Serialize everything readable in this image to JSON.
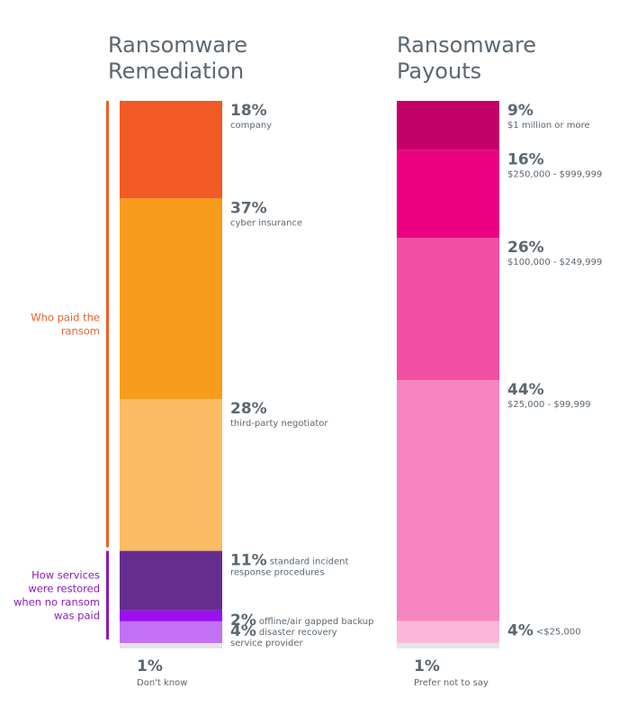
{
  "chart_data": [
    {
      "type": "bar",
      "title": "Ransomware Remediation",
      "title_lines": [
        "Ransomware",
        "Remediation"
      ],
      "stacked": true,
      "groups": [
        {
          "label_lines": [
            "Who paid the",
            "ransom"
          ],
          "color": "#e8602a"
        },
        {
          "label_lines": [
            "How services",
            "were restored",
            "when no ransom",
            "was paid"
          ],
          "color": "#8a1ab8"
        }
      ],
      "segments": [
        {
          "value": 18,
          "pct": "18%",
          "label_lines": [
            "company"
          ],
          "color": "#f15a24",
          "group": 0,
          "label_style": "below"
        },
        {
          "value": 37,
          "pct": "37%",
          "label_lines": [
            "cyber insurance"
          ],
          "color": "#f79c1c",
          "group": 0,
          "label_style": "below"
        },
        {
          "value": 28,
          "pct": "28%",
          "label_lines": [
            "third-party negotiator"
          ],
          "color": "#fbbc63",
          "group": 0,
          "label_style": "below"
        },
        {
          "value": 11,
          "pct": "11%",
          "label_lines": [
            "standard incident",
            "response procedures"
          ],
          "color": "#662d91",
          "group": 1,
          "label_style": "inline"
        },
        {
          "value": 2,
          "pct": "2%",
          "label_lines": [
            "offline/air gapped backup"
          ],
          "color": "#9b0ff0",
          "group": 1,
          "label_style": "inline"
        },
        {
          "value": 4,
          "pct": "4%",
          "label_lines": [
            "disaster recovery",
            "service provider"
          ],
          "color": "#c270f5",
          "group": 1,
          "label_style": "inline"
        },
        {
          "value": 1,
          "pct": "1%",
          "label_lines": [
            "Don't know"
          ],
          "color": "#e4e3ea",
          "group": null,
          "label_style": "bottom"
        }
      ]
    },
    {
      "type": "bar",
      "title": "Ransomware Payouts",
      "title_lines": [
        "Ransomware",
        "Payouts"
      ],
      "stacked": true,
      "segments": [
        {
          "value": 9,
          "pct": "9%",
          "label_lines": [
            "$1 million or more"
          ],
          "color": "#c30068",
          "label_style": "below"
        },
        {
          "value": 16,
          "pct": "16%",
          "label_lines": [
            "$250,000 - $999,999"
          ],
          "color": "#ec0081",
          "label_style": "below"
        },
        {
          "value": 26,
          "pct": "26%",
          "label_lines": [
            "$100,000 - $249,999"
          ],
          "color": "#f24fa4",
          "label_style": "below"
        },
        {
          "value": 44,
          "pct": "44%",
          "label_lines": [
            "$25,000 - $99,999"
          ],
          "color": "#f684c1",
          "label_style": "below"
        },
        {
          "value": 4,
          "pct": "4%",
          "label_lines": [
            "<$25,000"
          ],
          "color": "#fbb6d9",
          "label_style": "inline"
        },
        {
          "value": 1,
          "pct": "1%",
          "label_lines": [
            "Prefer not to say"
          ],
          "color": "#e4e3ea",
          "label_style": "bottom"
        }
      ]
    }
  ]
}
